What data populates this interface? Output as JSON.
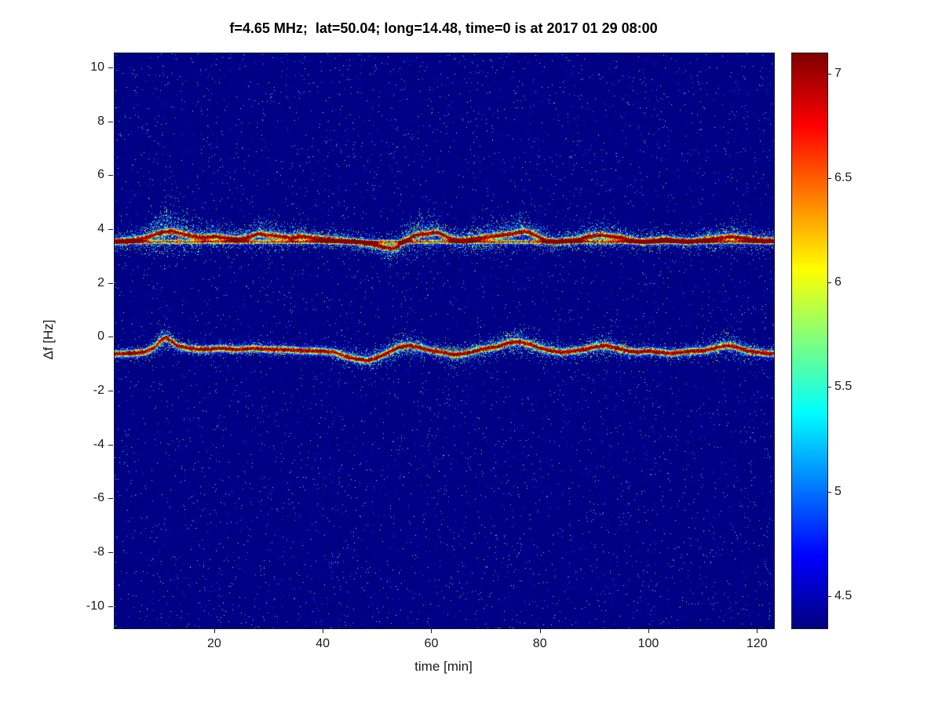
{
  "chart_data": {
    "type": "heatmap",
    "title": "f=4.65 MHz;  lat=50.04; long=14.48, time=0 is at 2017 01 29 08:00",
    "xlabel": "time [min]",
    "ylabel": "Δf [Hz]",
    "xlim": [
      1.5,
      123
    ],
    "ylim": [
      -10.8,
      10.55
    ],
    "x_ticks": [
      20,
      40,
      60,
      80,
      100,
      120
    ],
    "y_ticks": [
      10,
      8,
      6,
      4,
      2,
      0,
      -2,
      -4,
      -6,
      -8,
      -10
    ],
    "grid": false,
    "colorbar": {
      "colormap": "jet",
      "vmin": 4.35,
      "vmax": 7.1,
      "ticks": [
        4.5,
        5,
        5.5,
        6,
        6.5,
        7
      ],
      "position": "right"
    },
    "background_value": 4.4,
    "description": "Doppler shift spectrogram: two narrow high-intensity traces over a noisy dark-blue background",
    "traces": [
      {
        "name": "upper-doppler-trace",
        "baseline": 3.55,
        "core_value": 7.1,
        "points": [
          [
            1,
            3.55,
            0.18
          ],
          [
            4,
            3.6,
            0.18
          ],
          [
            6,
            3.65,
            0.22
          ],
          [
            8,
            3.75,
            0.35
          ],
          [
            10,
            3.9,
            0.45
          ],
          [
            12,
            3.95,
            0.45
          ],
          [
            14,
            3.85,
            0.4
          ],
          [
            16,
            3.75,
            0.3
          ],
          [
            18,
            3.7,
            0.22
          ],
          [
            20,
            3.75,
            0.25
          ],
          [
            22,
            3.7,
            0.22
          ],
          [
            24,
            3.65,
            0.2
          ],
          [
            26,
            3.7,
            0.25
          ],
          [
            28,
            3.85,
            0.3
          ],
          [
            30,
            3.8,
            0.28
          ],
          [
            32,
            3.75,
            0.25
          ],
          [
            34,
            3.7,
            0.22
          ],
          [
            36,
            3.75,
            0.22
          ],
          [
            38,
            3.7,
            0.2
          ],
          [
            40,
            3.65,
            0.2
          ],
          [
            43,
            3.6,
            0.18
          ],
          [
            46,
            3.55,
            0.18
          ],
          [
            49,
            3.45,
            0.2
          ],
          [
            51,
            3.35,
            0.22
          ],
          [
            53,
            3.3,
            0.25
          ],
          [
            55,
            3.6,
            0.3
          ],
          [
            57,
            3.8,
            0.35
          ],
          [
            59,
            3.85,
            0.35
          ],
          [
            61,
            3.9,
            0.32
          ],
          [
            63,
            3.7,
            0.25
          ],
          [
            65,
            3.6,
            0.25
          ],
          [
            67,
            3.65,
            0.28
          ],
          [
            69,
            3.7,
            0.3
          ],
          [
            71,
            3.75,
            0.3
          ],
          [
            73,
            3.8,
            0.3
          ],
          [
            75,
            3.85,
            0.32
          ],
          [
            77,
            3.95,
            0.32
          ],
          [
            79,
            3.8,
            0.28
          ],
          [
            81,
            3.6,
            0.22
          ],
          [
            83,
            3.55,
            0.2
          ],
          [
            85,
            3.6,
            0.2
          ],
          [
            87,
            3.65,
            0.22
          ],
          [
            89,
            3.75,
            0.28
          ],
          [
            91,
            3.8,
            0.28
          ],
          [
            93,
            3.75,
            0.25
          ],
          [
            95,
            3.7,
            0.22
          ],
          [
            97,
            3.6,
            0.2
          ],
          [
            99,
            3.55,
            0.2
          ],
          [
            101,
            3.6,
            0.2
          ],
          [
            103,
            3.65,
            0.2
          ],
          [
            105,
            3.6,
            0.18
          ],
          [
            107,
            3.55,
            0.18
          ],
          [
            109,
            3.6,
            0.2
          ],
          [
            111,
            3.65,
            0.22
          ],
          [
            113,
            3.7,
            0.25
          ],
          [
            115,
            3.75,
            0.28
          ],
          [
            117,
            3.7,
            0.25
          ],
          [
            119,
            3.65,
            0.2
          ],
          [
            121,
            3.6,
            0.18
          ],
          [
            123,
            3.6,
            0.18
          ]
        ]
      },
      {
        "name": "lower-doppler-trace",
        "core_value": 7.0,
        "points": [
          [
            1,
            -0.6,
            0.12
          ],
          [
            4,
            -0.6,
            0.12
          ],
          [
            7,
            -0.55,
            0.14
          ],
          [
            9,
            -0.35,
            0.2
          ],
          [
            10,
            -0.1,
            0.25
          ],
          [
            11,
            0.0,
            0.25
          ],
          [
            12,
            -0.15,
            0.2
          ],
          [
            13,
            -0.3,
            0.18
          ],
          [
            15,
            -0.4,
            0.14
          ],
          [
            18,
            -0.45,
            0.13
          ],
          [
            21,
            -0.4,
            0.13
          ],
          [
            24,
            -0.45,
            0.13
          ],
          [
            27,
            -0.4,
            0.14
          ],
          [
            30,
            -0.45,
            0.14
          ],
          [
            33,
            -0.45,
            0.13
          ],
          [
            36,
            -0.5,
            0.13
          ],
          [
            39,
            -0.5,
            0.13
          ],
          [
            42,
            -0.55,
            0.15
          ],
          [
            44,
            -0.7,
            0.2
          ],
          [
            46,
            -0.8,
            0.22
          ],
          [
            48,
            -0.85,
            0.22
          ],
          [
            50,
            -0.75,
            0.22
          ],
          [
            52,
            -0.55,
            0.25
          ],
          [
            54,
            -0.35,
            0.28
          ],
          [
            56,
            -0.3,
            0.25
          ],
          [
            58,
            -0.4,
            0.2
          ],
          [
            60,
            -0.5,
            0.18
          ],
          [
            62,
            -0.55,
            0.18
          ],
          [
            64,
            -0.65,
            0.2
          ],
          [
            66,
            -0.6,
            0.2
          ],
          [
            68,
            -0.5,
            0.2
          ],
          [
            70,
            -0.4,
            0.22
          ],
          [
            72,
            -0.35,
            0.22
          ],
          [
            74,
            -0.2,
            0.25
          ],
          [
            76,
            -0.15,
            0.25
          ],
          [
            78,
            -0.25,
            0.22
          ],
          [
            80,
            -0.4,
            0.2
          ],
          [
            82,
            -0.5,
            0.18
          ],
          [
            84,
            -0.55,
            0.16
          ],
          [
            86,
            -0.5,
            0.16
          ],
          [
            88,
            -0.45,
            0.18
          ],
          [
            90,
            -0.35,
            0.22
          ],
          [
            92,
            -0.3,
            0.22
          ],
          [
            94,
            -0.4,
            0.18
          ],
          [
            96,
            -0.5,
            0.16
          ],
          [
            98,
            -0.55,
            0.15
          ],
          [
            100,
            -0.5,
            0.15
          ],
          [
            102,
            -0.55,
            0.15
          ],
          [
            104,
            -0.6,
            0.15
          ],
          [
            106,
            -0.55,
            0.15
          ],
          [
            108,
            -0.5,
            0.15
          ],
          [
            110,
            -0.5,
            0.16
          ],
          [
            112,
            -0.4,
            0.2
          ],
          [
            114,
            -0.3,
            0.24
          ],
          [
            116,
            -0.35,
            0.24
          ],
          [
            118,
            -0.5,
            0.18
          ],
          [
            120,
            -0.55,
            0.15
          ],
          [
            122,
            -0.6,
            0.14
          ]
        ]
      }
    ]
  }
}
